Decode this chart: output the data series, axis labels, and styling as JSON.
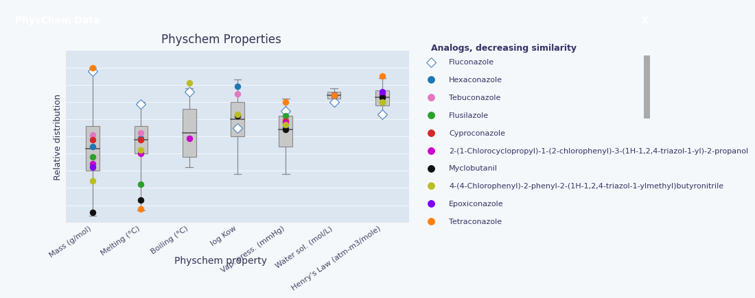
{
  "title": "Physchem Properties",
  "xlabel": "Physchem property",
  "ylabel": "Relative distribution",
  "properties": [
    "Mass (g/mol)",
    "Melting (°C)",
    "Boiling (°C)",
    "log Kow",
    "Vap. press. (mmHg)",
    "Water sol. (mol/L)",
    "Henry's Law (atm-m3/mole)"
  ],
  "box_data": {
    "Mass (g/mol)": {
      "whislo": 0.04,
      "q1": 0.3,
      "med": 0.43,
      "q3": 0.56,
      "whishi": 0.9
    },
    "Melting (°C)": {
      "whislo": 0.07,
      "q1": 0.4,
      "med": 0.48,
      "q3": 0.56,
      "whishi": 0.7
    },
    "Boiling (°C)": {
      "whislo": 0.32,
      "q1": 0.38,
      "med": 0.52,
      "q3": 0.66,
      "whishi": 0.78
    },
    "log Kow": {
      "whislo": 0.28,
      "q1": 0.5,
      "med": 0.6,
      "q3": 0.7,
      "whishi": 0.83
    },
    "Vap. press. (mmHg)": {
      "whislo": 0.28,
      "q1": 0.44,
      "med": 0.54,
      "q3": 0.62,
      "whishi": 0.72
    },
    "Water sol. (mol/L)": {
      "whislo": 0.7,
      "q1": 0.72,
      "med": 0.74,
      "q3": 0.76,
      "whishi": 0.78
    },
    "Henry's Law (atm-m3/mole)": {
      "whislo": 0.62,
      "q1": 0.68,
      "med": 0.73,
      "q3": 0.77,
      "whishi": 0.84
    }
  },
  "analogs": [
    {
      "name": "Fluconazole",
      "marker": "D",
      "color": "#4a7fbf",
      "mfc": "white",
      "points": {
        "Mass (g/mol)": 0.88,
        "Melting (°C)": 0.69,
        "Boiling (°C)": 0.76,
        "log Kow": 0.55,
        "Vap. press. (mmHg)": 0.65,
        "Water sol. (mol/L)": 0.7,
        "Henry's Law (atm-m3/mole)": 0.63
      }
    },
    {
      "name": "Hexaconazole",
      "marker": "o",
      "color": "#1f77b4",
      "mfc": "#1f77b4",
      "points": {
        "Mass (g/mol)": 0.44,
        "Melting (°C)": 0.49,
        "Boiling (°C)": null,
        "log Kow": 0.79,
        "Vap. press. (mmHg)": 0.55,
        "Water sol. (mol/L)": 0.74,
        "Henry's Law (atm-m3/mole)": 0.74
      }
    },
    {
      "name": "Tebuconazole",
      "marker": "o",
      "color": "#e377c2",
      "mfc": "#e377c2",
      "points": {
        "Mass (g/mol)": 0.51,
        "Melting (°C)": 0.52,
        "Boiling (°C)": null,
        "log Kow": 0.75,
        "Vap. press. (mmHg)": 0.6,
        "Water sol. (mol/L)": 0.74,
        "Henry's Law (atm-m3/mole)": 0.74
      }
    },
    {
      "name": "Flusilazole",
      "marker": "o",
      "color": "#2ca02c",
      "mfc": "#2ca02c",
      "points": {
        "Mass (g/mol)": 0.38,
        "Melting (°C)": 0.22,
        "Boiling (°C)": null,
        "log Kow": null,
        "Vap. press. (mmHg)": 0.62,
        "Water sol. (mol/L)": 0.74,
        "Henry's Law (atm-m3/mole)": 0.7
      }
    },
    {
      "name": "Cyproconazole",
      "marker": "o",
      "color": "#d62728",
      "mfc": "#d62728",
      "points": {
        "Mass (g/mol)": 0.48,
        "Melting (°C)": 0.48,
        "Boiling (°C)": null,
        "log Kow": null,
        "Vap. press. (mmHg)": 0.59,
        "Water sol. (mol/L)": 0.74,
        "Henry's Law (atm-m3/mole)": 0.73
      }
    },
    {
      "name": "2-(1-Chlorocyclopropyl)-1-(2-chlorophenyl)-3-(1H-1,2,4-triazol-1-yl)-2-propanol",
      "marker": "o",
      "color": "#cc00cc",
      "mfc": "#cc00cc",
      "points": {
        "Mass (g/mol)": 0.34,
        "Melting (°C)": 0.4,
        "Boiling (°C)": 0.49,
        "log Kow": null,
        "Vap. press. (mmHg)": 0.58,
        "Water sol. (mol/L)": 0.74,
        "Henry's Law (atm-m3/mole)": 0.75
      }
    },
    {
      "name": "Myclobutanil",
      "marker": "o",
      "color": "#111111",
      "mfc": "#111111",
      "points": {
        "Mass (g/mol)": 0.06,
        "Melting (°C)": 0.13,
        "Boiling (°C)": null,
        "log Kow": 0.62,
        "Vap. press. (mmHg)": 0.54,
        "Water sol. (mol/L)": 0.74,
        "Henry's Law (atm-m3/mole)": 0.73
      }
    },
    {
      "name": "4-(4-Chlorophenyl)-2-phenyl-2-(1H-1,2,4-triazol-1-ylmethyl)butyronitrile",
      "marker": "o",
      "color": "#bcbd22",
      "mfc": "#bcbd22",
      "points": {
        "Mass (g/mol)": 0.24,
        "Melting (°C)": 0.42,
        "Boiling (°C)": 0.81,
        "log Kow": 0.63,
        "Vap. press. (mmHg)": 0.57,
        "Water sol. (mol/L)": 0.74,
        "Henry's Law (atm-m3/mole)": 0.7
      }
    },
    {
      "name": "Epoxiconazole",
      "marker": "o",
      "color": "#7f00ff",
      "mfc": "#7f00ff",
      "points": {
        "Mass (g/mol)": 0.32,
        "Melting (°C)": null,
        "Boiling (°C)": null,
        "log Kow": null,
        "Vap. press. (mmHg)": null,
        "Water sol. (mol/L)": 0.74,
        "Henry's Law (atm-m3/mole)": 0.76
      }
    },
    {
      "name": "Tetraconazole",
      "marker": "o",
      "color": "#ff7f0e",
      "mfc": "#ff7f0e",
      "points": {
        "Mass (g/mol)": 0.9,
        "Melting (°C)": 0.08,
        "Boiling (°C)": null,
        "log Kow": null,
        "Vap. press. (mmHg)": 0.7,
        "Water sol. (mol/L)": 0.74,
        "Henry's Law (atm-m3/mole)": 0.85
      }
    }
  ],
  "header_color": "#2e7396",
  "bg_color": "#dce6f1",
  "panel_bg": "#f5f8fa",
  "title_fontsize": 12,
  "label_fontsize": 9,
  "tick_fontsize": 8,
  "legend_title_fontsize": 9,
  "legend_fontsize": 8
}
